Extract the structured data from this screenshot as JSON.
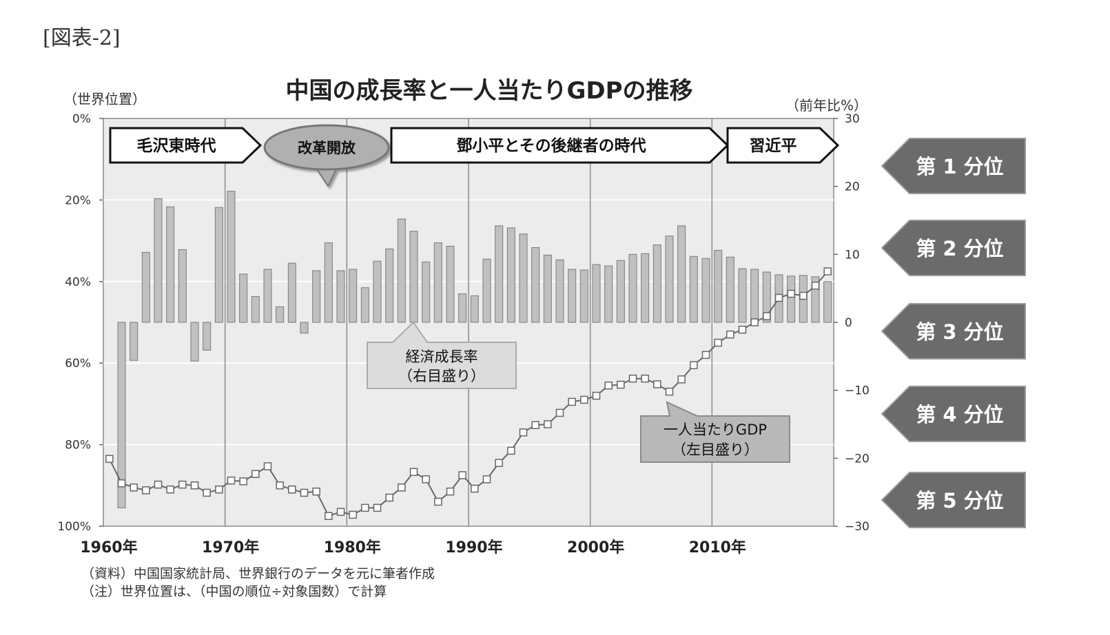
{
  "figure_label": "[図表-2]",
  "axis_captions": {
    "left": "（世界位置）",
    "right": "（前年比%）"
  },
  "notes": [
    "（資料）中国国家統計局、世界銀行のデータを元に筆者作成",
    "（注）世界位置は、（中国の順位÷対象国数）で計算"
  ],
  "eras": [
    "毛沢東時代",
    "改革開放",
    "鄧小平とその後継者の時代",
    "習近平"
  ],
  "callouts": {
    "growth": [
      "経済成長率",
      "（右目盛り）"
    ],
    "gdp": [
      "一人当たりGDP",
      "（左目盛り）"
    ]
  },
  "quintiles": [
    "第 1 分位",
    "第 2 分位",
    "第 3 分位",
    "第 4 分位",
    "第 5 分位"
  ],
  "colors": {
    "plot_bg": "#ececec",
    "bar_fill": "#c0c0c0",
    "bar_stroke": "#7a7a7a",
    "line": "#666666",
    "marker_fill": "#ffffff",
    "quintile_fill": "#6b6b6b"
  },
  "chart_data": {
    "type": "bar+line",
    "title": "中国の成長率と一人当たりGDPの推移",
    "x": [
      1960,
      1961,
      1962,
      1963,
      1964,
      1965,
      1966,
      1967,
      1968,
      1969,
      1970,
      1971,
      1972,
      1973,
      1974,
      1975,
      1976,
      1977,
      1978,
      1979,
      1980,
      1981,
      1982,
      1983,
      1984,
      1985,
      1986,
      1987,
      1988,
      1989,
      1990,
      1991,
      1992,
      1993,
      1994,
      1995,
      1996,
      1997,
      1998,
      1999,
      2000,
      2001,
      2002,
      2003,
      2004,
      2005,
      2006,
      2007,
      2008,
      2009,
      2010,
      2011,
      2012,
      2013,
      2014,
      2015,
      2016,
      2017,
      2018,
      2019
    ],
    "x_tick_labels": [
      "1960年",
      "1970年",
      "1980年",
      "1990年",
      "2000年",
      "2010年"
    ],
    "left_axis": {
      "label": "（世界位置）",
      "ticks": [
        "0%",
        "20%",
        "40%",
        "60%",
        "80%",
        "100%"
      ],
      "range": [
        0,
        100
      ],
      "inverted": true
    },
    "right_axis": {
      "label": "（前年比%）",
      "ticks": [
        "30",
        "20",
        "10",
        "0",
        "−10",
        "−20",
        "−30"
      ],
      "range": [
        -30,
        30
      ]
    },
    "grid": true,
    "series": [
      {
        "name": "経済成長率",
        "axis": "right",
        "type": "bar",
        "values": [
          null,
          -27.3,
          -5.6,
          10.3,
          18.2,
          17.0,
          10.7,
          -5.7,
          -4.1,
          16.9,
          19.3,
          7.1,
          3.8,
          7.8,
          2.3,
          8.7,
          -1.6,
          7.6,
          11.7,
          7.6,
          7.8,
          5.1,
          9.0,
          10.8,
          15.2,
          13.4,
          8.9,
          11.7,
          11.2,
          4.2,
          3.9,
          9.3,
          14.2,
          13.9,
          13.0,
          11.0,
          9.9,
          9.2,
          7.8,
          7.7,
          8.5,
          8.3,
          9.1,
          10.0,
          10.1,
          11.4,
          12.7,
          14.2,
          9.7,
          9.4,
          10.6,
          9.6,
          7.9,
          7.8,
          7.4,
          7.0,
          6.8,
          6.9,
          6.7,
          6.0
        ]
      },
      {
        "name": "一人当たりGDP",
        "axis": "left",
        "type": "line",
        "values": [
          83.5,
          89.5,
          90.5,
          91.2,
          89.8,
          91.0,
          89.8,
          90.0,
          91.8,
          91.0,
          88.8,
          89.0,
          87.2,
          85.3,
          90.0,
          91.0,
          91.8,
          91.5,
          97.5,
          96.5,
          97.2,
          95.5,
          95.5,
          93.0,
          90.5,
          86.7,
          88.5,
          94.0,
          91.5,
          87.5,
          90.8,
          88.5,
          84.5,
          81.5,
          77.0,
          75.2,
          75.0,
          72.2,
          69.5,
          69.0,
          68.0,
          65.5,
          65.3,
          63.8,
          63.8,
          65.2,
          67.0,
          64.0,
          60.5,
          58.0,
          55.0,
          53.0,
          51.8,
          50.0,
          48.5,
          44.0,
          43.0,
          43.5,
          41.0,
          37.5
        ]
      }
    ]
  }
}
